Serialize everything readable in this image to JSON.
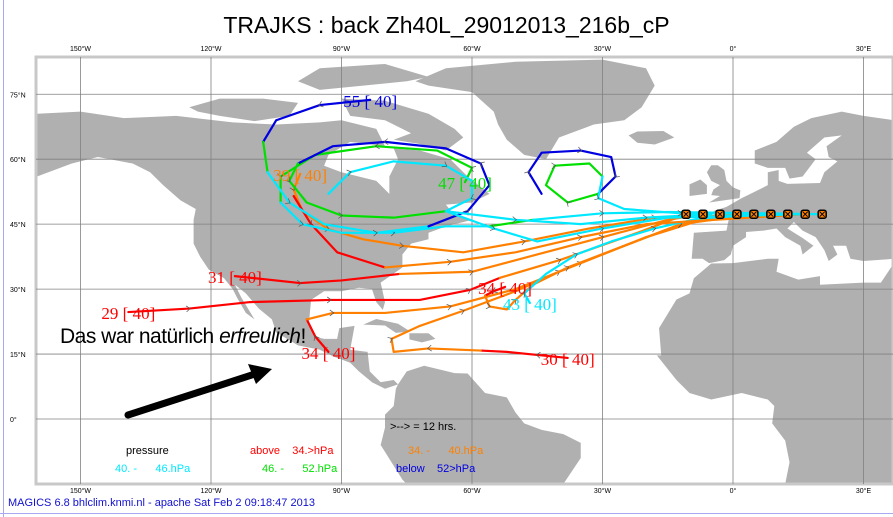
{
  "title": "TRAJKS : back Zh40L_29012013_216b_cP",
  "footer": "MAGICS 6.8 bhlclim.knmi.nl - apache Sat Feb  2 09:18:47 2013",
  "note": {
    "prefix": "Das war natürlich ",
    "italic": "erfreulich",
    "suffix": "!"
  },
  "map": {
    "projection": "equirectangular",
    "lon_range": [
      -160,
      37
    ],
    "lat_range": [
      -15,
      83.6
    ],
    "land_color": "#b0b0b0",
    "sea_color": "#ffffff",
    "grid_color": "#808080",
    "lon_ticks": [
      {
        "value": -150,
        "label": "150°W"
      },
      {
        "value": -120,
        "label": "120°W"
      },
      {
        "value": -90,
        "label": "90°W"
      },
      {
        "value": -60,
        "label": "60°W"
      },
      {
        "value": -30,
        "label": "30°W"
      },
      {
        "value": 0,
        "label": "0°"
      },
      {
        "value": 30,
        "label": "30°E"
      }
    ],
    "lat_ticks": [
      {
        "value": 75,
        "label": "75°N"
      },
      {
        "value": 60,
        "label": "60°N"
      },
      {
        "value": 45,
        "label": "45°N"
      },
      {
        "value": 30,
        "label": "30°N"
      },
      {
        "value": 15,
        "label": "15°N"
      },
      {
        "value": 0,
        "label": "0°"
      }
    ]
  },
  "levels": {
    "above34": "#ff0000",
    "34-40": "#ff8000",
    "40-46": "#00e8ff",
    "46-52": "#00e000",
    "below52": "#0000e0"
  },
  "legend": {
    "interval": ">--> = 12 hrs.",
    "pressure": "pressure",
    "items": [
      {
        "level": "above34",
        "from": "above",
        "to": "34.>hPa"
      },
      {
        "level": "34-40",
        "from": "34. -",
        "to": "40.hPa"
      },
      {
        "level": "40-46",
        "from": "40. -",
        "to": "46.hPa"
      },
      {
        "level": "46-52",
        "from": "46. -",
        "to": "52.hPa"
      },
      {
        "level": "below52",
        "from": "below",
        "to": "52>hPa"
      }
    ]
  },
  "start_points": {
    "lat": 47.3,
    "lons": [
      -10.8,
      -6.9,
      -3.0,
      0.9,
      4.8,
      8.7,
      12.6,
      16.6,
      20.5
    ]
  },
  "trajectories": [
    {
      "label": "29 [ 40]",
      "segments": [
        {
          "level": "above34",
          "points": [
            [
              -139,
              24.7
            ],
            [
              -125,
              25.5
            ],
            [
              -111,
              27
            ],
            [
              -92.6,
              27.5
            ],
            [
              -72,
              27.5
            ],
            [
              -60.5,
              29.8
            ],
            [
              -53.6,
              32.6
            ]
          ]
        },
        {
          "level": "34-40",
          "points": [
            [
              -53.6,
              32.6
            ],
            [
              -39.8,
              36.7
            ],
            [
              -21.4,
              43.2
            ],
            [
              -10.8,
              47.3
            ]
          ]
        }
      ]
    },
    {
      "label": "31 [ 40]",
      "segments": [
        {
          "level": "above34",
          "points": [
            [
              -114.5,
              33
            ],
            [
              -99.5,
              31.4
            ],
            [
              -90,
              32
            ],
            [
              -76.6,
              33.5
            ]
          ]
        },
        {
          "level": "34-40",
          "points": [
            [
              -76.6,
              33.5
            ],
            [
              -60,
              34
            ],
            [
              -45,
              38
            ],
            [
              -30,
              42
            ],
            [
              -15,
              46
            ],
            [
              -6.9,
              47.3
            ]
          ]
        }
      ]
    },
    {
      "label": "34 [ 40]",
      "segments": [
        {
          "level": "above34",
          "points": [
            [
              -93,
              15.5
            ],
            [
              -96,
              19
            ],
            [
              -98,
              23
            ]
          ]
        },
        {
          "level": "34-40",
          "points": [
            [
              -98,
              23
            ],
            [
              -92,
              24.5
            ],
            [
              -80,
              24.5
            ],
            [
              -65,
              26
            ],
            [
              -50,
              30
            ],
            [
              -35,
              36
            ],
            [
              -20,
              42
            ],
            [
              -3,
              47.3
            ]
          ]
        }
      ]
    },
    {
      "label": "30 [ 40]",
      "segments": [
        {
          "level": "above34",
          "points": [
            [
              -38,
              14.1
            ],
            [
              -45,
              14.8
            ],
            [
              -52,
              15.5
            ],
            [
              -58,
              15.8
            ]
          ]
        },
        {
          "level": "34-40",
          "points": [
            [
              -58,
              15.8
            ],
            [
              -70,
              16.3
            ],
            [
              -78,
              15.5
            ],
            [
              -78.5,
              18.5
            ],
            [
              -72,
              21.5
            ],
            [
              -62,
              25
            ],
            [
              -50,
              29.5
            ],
            [
              -40,
              34
            ],
            [
              -25,
              40
            ],
            [
              -12,
              45
            ],
            [
              0.9,
              47.3
            ]
          ]
        }
      ]
    },
    {
      "label": "34 [ 40]",
      "segments": [
        {
          "level": "above34",
          "points": [
            [
              -52.4,
              30.5
            ],
            [
              -55,
              29.5
            ],
            [
              -57,
              28.5
            ]
          ]
        },
        {
          "level": "34-40",
          "points": [
            [
              -57,
              28.5
            ],
            [
              -56,
              26
            ],
            [
              -52,
              25.3
            ],
            [
              -50,
              27.5
            ],
            [
              -46,
              31
            ],
            [
              -38,
              35
            ],
            [
              -25,
              40
            ],
            [
              -12,
              45
            ],
            [
              4.8,
              47.3
            ]
          ]
        }
      ]
    },
    {
      "label": "43 [ 40]",
      "segments": [
        {
          "level": "40-46",
          "points": [
            [
              -46.7,
              26.8
            ],
            [
              -48,
              29
            ],
            [
              -43,
              33.5
            ],
            [
              -36,
              38
            ],
            [
              -28,
              41
            ],
            [
              -18,
              44
            ],
            [
              -8,
              46.3
            ],
            [
              8.7,
              47.3
            ]
          ]
        }
      ]
    },
    {
      "label": "39 [ 40]",
      "segments": [
        {
          "level": "34-40",
          "points": [
            [
              -99.5,
              56.6
            ],
            [
              -101,
              53
            ],
            [
              -99,
              48
            ],
            [
              -93,
              43.8
            ],
            [
              -85,
              41.5
            ],
            [
              -76,
              40
            ],
            [
              -62,
              38.5
            ],
            [
              -48,
              41
            ],
            [
              -33,
              44
            ],
            [
              -18,
              46.5
            ],
            [
              12.6,
              47.3
            ]
          ]
        }
      ]
    },
    {
      "label": "",
      "segments": [
        {
          "level": "above34",
          "points": [
            [
              -101,
              51.5
            ],
            [
              -97,
              45
            ],
            [
              -91,
              38.5
            ],
            [
              -80,
              35
            ]
          ]
        },
        {
          "level": "34-40",
          "points": [
            [
              -80,
              35
            ],
            [
              -65,
              36.3
            ],
            [
              -50,
              38.5
            ],
            [
              -35,
              42
            ],
            [
              -20,
              45
            ],
            [
              16.6,
              47.3
            ]
          ]
        }
      ]
    },
    {
      "label": "47 [ 40]",
      "segments": [
        {
          "level": "46-52",
          "points": [
            [
              -61.6,
              54.7
            ],
            [
              -60,
              58
            ],
            [
              -68,
              62
            ],
            [
              -82,
              63
            ],
            [
              -96,
              61
            ],
            [
              -104,
              56
            ],
            [
              -104,
              50
            ]
          ]
        },
        {
          "level": "40-46",
          "points": [
            [
              -104,
              50
            ],
            [
              -99,
              45
            ],
            [
              -90,
              43
            ],
            [
              -78,
              43
            ],
            [
              -66,
              44.5
            ],
            [
              -56,
              44.5
            ]
          ]
        },
        {
          "level": "46-52",
          "points": [
            [
              -56,
              44.5
            ],
            [
              -46,
              46
            ]
          ]
        },
        {
          "level": "40-46",
          "points": [
            [
              -46,
              46
            ],
            [
              -30,
              47.5
            ],
            [
              -15,
              47.8
            ],
            [
              20.5,
              47.3
            ]
          ]
        }
      ]
    },
    {
      "label": "55 [ 40]",
      "segments": [
        {
          "level": "below52",
          "points": [
            [
              -83.4,
              73.7
            ],
            [
              -95,
              72.5
            ],
            [
              -105,
              69
            ],
            [
              -108,
              64
            ]
          ]
        },
        {
          "level": "46-52",
          "points": [
            [
              -108,
              64
            ],
            [
              -107,
              57
            ]
          ]
        },
        {
          "level": "40-46",
          "points": [
            [
              -107,
              57
            ],
            [
              -102,
              50
            ],
            [
              -94,
              45
            ],
            [
              -82,
              43
            ],
            [
              -70,
              44.5
            ]
          ]
        },
        {
          "level": "below52",
          "points": [
            [
              -70,
              44.5
            ],
            [
              -61,
              48
            ],
            [
              -56,
              54
            ],
            [
              -58,
              59
            ],
            [
              -66,
              62.5
            ],
            [
              -80,
              64
            ],
            [
              -92,
              63
            ],
            [
              -100,
              59
            ]
          ]
        },
        {
          "level": "46-52",
          "points": [
            [
              -100,
              59
            ],
            [
              -102,
              55
            ],
            [
              -98,
              50
            ],
            [
              -90,
              47
            ],
            [
              -78,
              46.5
            ],
            [
              -66,
              48
            ]
          ]
        },
        {
          "level": "40-46",
          "points": [
            [
              -66,
              48
            ],
            [
              -50,
              46
            ],
            [
              -35,
              45
            ],
            [
              -20,
              46.5
            ],
            [
              -5,
              47.3
            ]
          ]
        }
      ]
    },
    {
      "label": "",
      "segments": [
        {
          "level": "below52",
          "points": [
            [
              -44,
              52
            ],
            [
              -47,
              57
            ],
            [
              -44,
              61.5
            ],
            [
              -35,
              62
            ],
            [
              -28,
              60.5
            ],
            [
              -27,
              56
            ],
            [
              -31,
              52
            ]
          ]
        },
        {
          "level": "46-52",
          "points": [
            [
              -31,
              52
            ],
            [
              -38,
              50
            ],
            [
              -43,
              54
            ],
            [
              -41,
              58.5
            ],
            [
              -33,
              59
            ],
            [
              -30,
              56
            ]
          ]
        },
        {
          "level": "40-46",
          "points": [
            [
              -30,
              56
            ],
            [
              -31,
              51
            ],
            [
              -25,
              48.5
            ],
            [
              -12,
              47.5
            ],
            [
              20.5,
              47.3
            ]
          ]
        }
      ]
    },
    {
      "label": "",
      "segments": [
        {
          "level": "40-46",
          "points": [
            [
              -93,
              52
            ],
            [
              -88,
              57
            ],
            [
              -78,
              59.5
            ],
            [
              -66,
              58.5
            ],
            [
              -60,
              55
            ],
            [
              -60,
              51
            ],
            [
              -66,
              48
            ],
            [
              -55,
              44
            ],
            [
              -45,
              41
            ],
            [
              -30,
              44
            ],
            [
              -15,
              46.5
            ],
            [
              16.6,
              47.3
            ]
          ]
        }
      ]
    }
  ]
}
